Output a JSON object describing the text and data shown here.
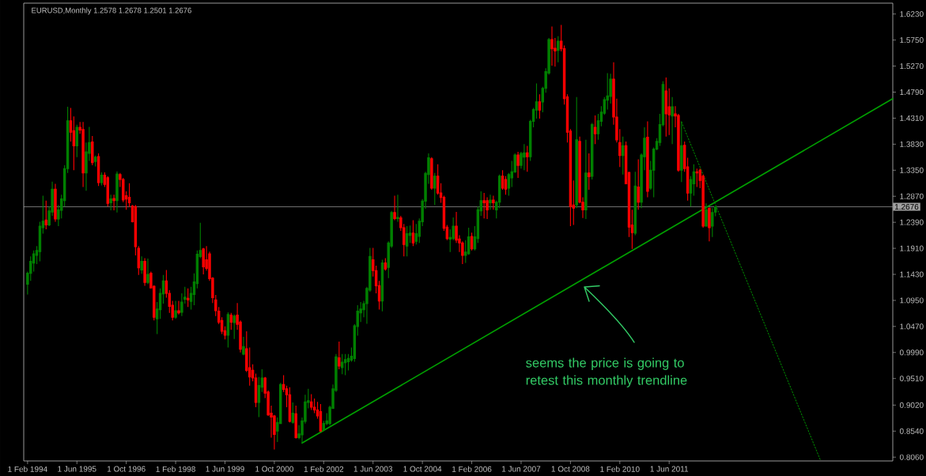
{
  "chart_data": {
    "type": "candlestick",
    "title": "EURUSD,Monthly 1.2578 1.2678 1.2501 1.2676",
    "annotations": [
      "seems the price is going to retest this monthly trendline"
    ],
    "colors": [
      "#008000",
      "#008000",
      "#008000",
      "#008000",
      "#008000",
      "#008000",
      "#ff0000",
      "#008000",
      "#008000",
      "#ff0000",
      "#008000",
      "#008000",
      "#008000",
      "#008000",
      "#ff0000",
      "#ff0000",
      "#008000",
      "#ff0000",
      "#ff0000",
      "#008000",
      "#008000",
      "#ff0000",
      "#008000",
      "#ff0000",
      "#008000",
      "#ff0000",
      "#ff0000",
      "#008000",
      "#ff0000",
      "#008000",
      "#ff0000",
      "#ff0000",
      "#ff0000",
      "#ff0000",
      "#ff0000",
      "#ff0000",
      "#ff0000",
      "#008000",
      "#ff0000",
      "#008000",
      "#ff0000",
      "#ff0000",
      "#008000",
      "#008000",
      "#008000",
      "#ff0000",
      "#ff0000",
      "#ff0000",
      "#008000",
      "#ff0000",
      "#008000",
      "#008000",
      "#ff0000",
      "#008000",
      "#008000",
      "#008000",
      "#008000",
      "#ff0000",
      "#ff0000",
      "#ff0000",
      "#ff0000",
      "#ff0000",
      "#ff0000",
      "#ff0000",
      "#ff0000",
      "#008000",
      "#ff0000",
      "#008000",
      "#ff0000",
      "#ff0000",
      "#008000",
      "#ff0000",
      "#ff0000",
      "#ff0000",
      "#ff0000",
      "#008000",
      "#008000",
      "#ff0000",
      "#ff0000",
      "#ff0000",
      "#ff0000",
      "#008000",
      "#008000",
      "#ff0000",
      "#ff0000",
      "#ff0000",
      "#008000",
      "#ff0000",
      "#008000",
      "#008000",
      "#008000",
      "#008000",
      "#ff0000",
      "#ff0000",
      "#ff0000",
      "#ff0000",
      "#008000",
      "#008000",
      "#008000",
      "#008000",
      "#008000",
      "#ff0000",
      "#008000",
      "#008000",
      "#008000",
      "#008000",
      "#008000",
      "#008000",
      "#008000",
      "#008000",
      "#008000",
      "#008000",
      "#ff0000",
      "#ff0000",
      "#ff0000",
      "#008000",
      "#ff0000",
      "#008000",
      "#008000",
      "#ff0000",
      "#008000",
      "#ff0000",
      "#ff0000",
      "#008000",
      "#008000",
      "#ff0000",
      "#008000",
      "#008000",
      "#008000",
      "#008000",
      "#008000",
      "#ff0000",
      "#008000",
      "#ff0000",
      "#ff0000",
      "#ff0000",
      "#ff0000",
      "#008000",
      "#008000",
      "#ff0000",
      "#ff0000",
      "#ff0000",
      "#008000",
      "#008000",
      "#ff0000",
      "#008000",
      "#008000",
      "#008000",
      "#ff0000",
      "#ff0000",
      "#008000",
      "#ff0000",
      "#008000",
      "#008000",
      "#ff0000",
      "#ff0000",
      "#008000",
      "#008000",
      "#008000",
      "#ff0000",
      "#008000",
      "#008000",
      "#ff0000",
      "#008000",
      "#008000",
      "#008000",
      "#ff0000",
      "#008000",
      "#008000",
      "#008000",
      "#ff0000",
      "#ff0000",
      "#008000",
      "#ff0000",
      "#ff0000",
      "#ff0000",
      "#ff0000",
      "#ff0000",
      "#008000",
      "#ff0000",
      "#ff0000",
      "#008000",
      "#ff0000",
      "#008000",
      "#ff0000",
      "#008000",
      "#008000",
      "#008000",
      "#008000",
      "#008000",
      "#ff0000",
      "#ff0000",
      "#ff0000",
      "#008000",
      "#ff0000",
      "#ff0000",
      "#ff0000",
      "#008000",
      "#ff0000",
      "#008000",
      "#008000",
      "#ff0000",
      "#008000",
      "#008000",
      "#008000",
      "#008000",
      "#008000",
      "#ff0000",
      "#ff0000",
      "#008000",
      "#ff0000",
      "#ff0000",
      "#008000",
      "#ff0000",
      "#ff0000",
      "#008000",
      "#008000",
      "#ff0000",
      "#ff0000",
      "#ff0000",
      "#008000",
      "#ff0000",
      "#008000",
      "#008000"
    ],
    "xlim": [
      "1993-12-24",
      "2017-06-16"
    ],
    "ylim": [
      0.799,
      1.643
    ],
    "xticks": [
      {
        "value": "1994-02-01",
        "label": "1 Feb 1994"
      },
      {
        "value": "1995-06-01",
        "label": "1 Jun 1995"
      },
      {
        "value": "1996-10-01",
        "label": "1 Oct 1996"
      },
      {
        "value": "1998-02-01",
        "label": "1 Feb 1998"
      },
      {
        "value": "1999-06-01",
        "label": "1 Jun 1999"
      },
      {
        "value": "2000-10-01",
        "label": "1 Oct 2000"
      },
      {
        "value": "2002-02-01",
        "label": "1 Feb 2002"
      },
      {
        "value": "2003-06-01",
        "label": "1 Jun 2003"
      },
      {
        "value": "2004-10-01",
        "label": "1 Oct 2004"
      },
      {
        "value": "2006-02-01",
        "label": "1 Feb 2006"
      },
      {
        "value": "2007-06-01",
        "label": "1 Jun 2007"
      },
      {
        "value": "2008-10-01",
        "label": "1 Oct 2008"
      },
      {
        "value": "2010-02-01",
        "label": "1 Feb 2010"
      },
      {
        "value": "2011-06-01",
        "label": "1 Jun 2011"
      }
    ],
    "yticks": [
      {
        "value": 0.806,
        "label": "0.8060"
      },
      {
        "value": 0.854,
        "label": "0.8540"
      },
      {
        "value": 0.902,
        "label": "0.9020"
      },
      {
        "value": 0.951,
        "label": "0.9510"
      },
      {
        "value": 0.999,
        "label": "0.9990"
      },
      {
        "value": 1.047,
        "label": "1.0470"
      },
      {
        "value": 1.095,
        "label": "1.0950"
      },
      {
        "value": 1.143,
        "label": "1.1430"
      },
      {
        "value": 1.191,
        "label": "1.1910"
      },
      {
        "value": 1.239,
        "label": "1.2390"
      },
      {
        "value": 1.287,
        "label": "1.2870"
      },
      {
        "value": 1.335,
        "label": "1.3350"
      },
      {
        "value": 1.383,
        "label": "1.3830"
      },
      {
        "value": 1.431,
        "label": "1.4310"
      },
      {
        "value": 1.479,
        "label": "1.4790"
      },
      {
        "value": 1.527,
        "label": "1.5270"
      },
      {
        "value": 1.575,
        "label": "1.5750"
      },
      {
        "value": 1.623,
        "label": "1.6230"
      }
    ],
    "ref_lines": [
      {
        "axis": "y",
        "value": 1.2676,
        "label": "1.2676",
        "color": "#a0a0a0"
      }
    ],
    "series": [
      {
        "type": "line",
        "color": "#00a000",
        "line_style": "solid",
        "x": [
          "2001-07-01",
          "2017-06-16"
        ],
        "values": [
          0.832,
          1.467
        ]
      },
      {
        "type": "line",
        "color": "#00a000",
        "line_style": "dotted",
        "x": [
          "2011-10-01",
          "2015-07-01"
        ],
        "values": [
          1.424,
          0.801
        ]
      }
    ],
    "x": [
      "1994-02",
      "1994-03",
      "1994-04",
      "1994-05",
      "1994-06",
      "1994-07",
      "1994-08",
      "1994-09",
      "1994-10",
      "1994-11",
      "1994-12",
      "1995-01",
      "1995-02",
      "1995-03",
      "1995-04",
      "1995-05",
      "1995-06",
      "1995-07",
      "1995-08",
      "1995-09",
      "1995-10",
      "1995-11",
      "1995-12",
      "1996-01",
      "1996-02",
      "1996-03",
      "1996-04",
      "1996-05",
      "1996-06",
      "1996-07",
      "1996-08",
      "1996-09",
      "1996-10",
      "1996-11",
      "1996-12",
      "1997-01",
      "1997-02",
      "1997-03",
      "1997-04",
      "1997-05",
      "1997-06",
      "1997-07",
      "1997-08",
      "1997-09",
      "1997-10",
      "1997-11",
      "1997-12",
      "1998-01",
      "1998-02",
      "1998-03",
      "1998-04",
      "1998-05",
      "1998-06",
      "1998-07",
      "1998-08",
      "1998-09",
      "1998-10",
      "1998-11",
      "1998-12",
      "1999-01",
      "1999-02",
      "1999-03",
      "1999-04",
      "1999-05",
      "1999-06",
      "1999-07",
      "1999-08",
      "1999-09",
      "1999-10",
      "1999-11",
      "1999-12",
      "2000-01",
      "2000-02",
      "2000-03",
      "2000-04",
      "2000-05",
      "2000-06",
      "2000-07",
      "2000-08",
      "2000-09",
      "2000-10",
      "2000-11",
      "2000-12",
      "2001-01",
      "2001-02",
      "2001-03",
      "2001-04",
      "2001-05",
      "2001-06",
      "2001-07",
      "2001-08",
      "2001-09",
      "2001-10",
      "2001-11",
      "2001-12",
      "2002-01",
      "2002-02",
      "2002-03",
      "2002-04",
      "2002-05",
      "2002-06",
      "2002-07",
      "2002-08",
      "2002-09",
      "2002-10",
      "2002-11",
      "2002-12",
      "2003-01",
      "2003-02",
      "2003-03",
      "2003-04",
      "2003-05",
      "2003-06",
      "2003-07",
      "2003-08",
      "2003-09",
      "2003-10",
      "2003-11",
      "2003-12",
      "2004-01",
      "2004-02",
      "2004-03",
      "2004-04",
      "2004-05",
      "2004-06",
      "2004-07",
      "2004-08",
      "2004-09",
      "2004-10",
      "2004-11",
      "2004-12",
      "2005-01",
      "2005-02",
      "2005-03",
      "2005-04",
      "2005-05",
      "2005-06",
      "2005-07",
      "2005-08",
      "2005-09",
      "2005-10",
      "2005-11",
      "2005-12",
      "2006-01",
      "2006-02",
      "2006-03",
      "2006-04",
      "2006-05",
      "2006-06",
      "2006-07",
      "2006-08",
      "2006-09",
      "2006-10",
      "2006-11",
      "2006-12",
      "2007-01",
      "2007-02",
      "2007-03",
      "2007-04",
      "2007-05",
      "2007-06",
      "2007-07",
      "2007-08",
      "2007-09",
      "2007-10",
      "2007-11",
      "2007-12",
      "2008-01",
      "2008-02",
      "2008-03",
      "2008-04",
      "2008-05",
      "2008-06",
      "2008-07",
      "2008-08",
      "2008-09",
      "2008-10",
      "2008-11",
      "2008-12",
      "2009-01",
      "2009-02",
      "2009-03",
      "2009-04",
      "2009-05",
      "2009-06",
      "2009-07",
      "2009-08",
      "2009-09",
      "2009-10",
      "2009-11",
      "2009-12",
      "2010-01",
      "2010-02",
      "2010-03",
      "2010-04",
      "2010-05",
      "2010-06",
      "2010-07",
      "2010-08",
      "2010-09",
      "2010-10",
      "2010-11",
      "2010-12",
      "2011-01",
      "2011-02",
      "2011-03",
      "2011-04",
      "2011-05",
      "2011-06",
      "2011-07",
      "2011-08",
      "2011-09",
      "2011-10",
      "2011-11",
      "2011-12",
      "2012-01",
      "2012-02",
      "2012-03",
      "2012-04",
      "2012-05",
      "2012-06",
      "2012-07",
      "2012-08",
      "2012-09"
    ],
    "ohlc": [
      [
        1.125,
        1.148,
        1.106,
        1.145
      ],
      [
        1.145,
        1.176,
        1.131,
        1.167
      ],
      [
        1.164,
        1.187,
        1.148,
        1.181
      ],
      [
        1.178,
        1.195,
        1.162,
        1.187
      ],
      [
        1.185,
        1.24,
        1.167,
        1.232
      ],
      [
        1.229,
        1.288,
        1.218,
        1.241
      ],
      [
        1.243,
        1.279,
        1.226,
        1.234
      ],
      [
        1.234,
        1.268,
        1.232,
        1.26
      ],
      [
        1.258,
        1.314,
        1.251,
        1.3
      ],
      [
        1.3,
        1.31,
        1.24,
        1.245
      ],
      [
        1.245,
        1.271,
        1.232,
        1.262
      ],
      [
        1.261,
        1.29,
        1.246,
        1.282
      ],
      [
        1.279,
        1.344,
        1.268,
        1.338
      ],
      [
        1.338,
        1.452,
        1.33,
        1.426
      ],
      [
        1.426,
        1.45,
        1.388,
        1.405
      ],
      [
        1.408,
        1.434,
        1.335,
        1.38
      ],
      [
        1.38,
        1.419,
        1.359,
        1.414
      ],
      [
        1.414,
        1.424,
        1.402,
        1.409
      ],
      [
        1.41,
        1.424,
        1.304,
        1.33
      ],
      [
        1.33,
        1.386,
        1.297,
        1.369
      ],
      [
        1.366,
        1.415,
        1.352,
        1.386
      ],
      [
        1.387,
        1.398,
        1.344,
        1.349
      ],
      [
        1.351,
        1.362,
        1.342,
        1.359
      ],
      [
        1.36,
        1.366,
        1.306,
        1.312
      ],
      [
        1.312,
        1.331,
        1.307,
        1.326
      ],
      [
        1.326,
        1.331,
        1.304,
        1.309
      ],
      [
        1.321,
        1.324,
        1.268,
        1.274
      ],
      [
        1.275,
        1.29,
        1.261,
        1.282
      ],
      [
        1.283,
        1.29,
        1.261,
        1.279
      ],
      [
        1.279,
        1.333,
        1.257,
        1.328
      ],
      [
        1.327,
        1.33,
        1.304,
        1.318
      ],
      [
        1.318,
        1.321,
        1.276,
        1.28
      ],
      [
        1.288,
        1.296,
        1.262,
        1.282
      ],
      [
        1.285,
        1.311,
        1.267,
        1.275
      ],
      [
        1.269,
        1.271,
        1.239,
        1.24
      ],
      [
        1.268,
        1.271,
        1.178,
        1.194
      ],
      [
        1.191,
        1.195,
        1.142,
        1.155
      ],
      [
        1.151,
        1.176,
        1.144,
        1.167
      ],
      [
        1.167,
        1.173,
        1.122,
        1.128
      ],
      [
        1.128,
        1.172,
        1.125,
        1.143
      ],
      [
        1.145,
        1.148,
        1.117,
        1.118
      ],
      [
        1.121,
        1.123,
        1.058,
        1.064
      ],
      [
        1.061,
        1.092,
        1.033,
        1.079
      ],
      [
        1.078,
        1.117,
        1.061,
        1.108
      ],
      [
        1.107,
        1.142,
        1.089,
        1.131
      ],
      [
        1.131,
        1.151,
        1.1,
        1.108
      ],
      [
        1.108,
        1.114,
        1.072,
        1.084
      ],
      [
        1.086,
        1.094,
        1.058,
        1.064
      ],
      [
        1.064,
        1.094,
        1.061,
        1.076
      ],
      [
        1.076,
        1.094,
        1.069,
        1.072
      ],
      [
        1.073,
        1.108,
        1.066,
        1.092
      ],
      [
        1.097,
        1.12,
        1.089,
        1.101
      ],
      [
        1.099,
        1.117,
        1.083,
        1.096
      ],
      [
        1.093,
        1.12,
        1.078,
        1.108
      ],
      [
        1.106,
        1.145,
        1.086,
        1.129
      ],
      [
        1.126,
        1.187,
        1.117,
        1.18
      ],
      [
        1.176,
        1.238,
        1.173,
        1.187
      ],
      [
        1.19,
        1.192,
        1.143,
        1.157
      ],
      [
        1.17,
        1.195,
        1.15,
        1.154
      ],
      [
        1.181,
        1.185,
        1.131,
        1.135
      ],
      [
        1.136,
        1.138,
        1.09,
        1.1
      ],
      [
        1.096,
        1.105,
        1.066,
        1.076
      ],
      [
        1.075,
        1.083,
        1.051,
        1.055
      ],
      [
        1.058,
        1.064,
        1.033,
        1.038
      ],
      [
        1.039,
        1.047,
        1.023,
        1.031
      ],
      [
        1.031,
        1.073,
        1.008,
        1.069
      ],
      [
        1.068,
        1.072,
        1.041,
        1.055
      ],
      [
        1.054,
        1.069,
        1.024,
        1.066
      ],
      [
        1.068,
        1.09,
        1.041,
        1.051
      ],
      [
        1.055,
        1.058,
        0.999,
        1.005
      ],
      [
        0.996,
        1.028,
        0.994,
        1.01
      ],
      [
        1.006,
        1.038,
        0.963,
        0.966
      ],
      [
        0.971,
        1.008,
        0.938,
        0.954
      ],
      [
        0.966,
        0.977,
        0.946,
        0.952
      ],
      [
        0.952,
        0.96,
        0.898,
        0.907
      ],
      [
        0.907,
        0.954,
        0.88,
        0.938
      ],
      [
        0.935,
        0.968,
        0.926,
        0.952
      ],
      [
        0.952,
        0.954,
        0.915,
        0.924
      ],
      [
        0.926,
        0.929,
        0.882,
        0.884
      ],
      [
        0.887,
        0.901,
        0.842,
        0.88
      ],
      [
        0.882,
        0.884,
        0.82,
        0.848
      ],
      [
        0.854,
        0.879,
        0.834,
        0.87
      ],
      [
        0.868,
        0.943,
        0.867,
        0.94
      ],
      [
        0.94,
        0.957,
        0.926,
        0.931
      ],
      [
        0.932,
        0.938,
        0.898,
        0.921
      ],
      [
        0.921,
        0.935,
        0.87,
        0.872
      ],
      [
        0.87,
        0.907,
        0.868,
        0.887
      ],
      [
        0.886,
        0.901,
        0.84,
        0.842
      ],
      [
        0.842,
        0.865,
        0.839,
        0.849
      ],
      [
        0.847,
        0.879,
        0.833,
        0.873
      ],
      [
        0.872,
        0.921,
        0.868,
        0.908
      ],
      [
        0.907,
        0.932,
        0.896,
        0.91
      ],
      [
        0.908,
        0.922,
        0.893,
        0.898
      ],
      [
        0.898,
        0.914,
        0.887,
        0.893
      ],
      [
        0.893,
        0.908,
        0.877,
        0.882
      ],
      [
        0.89,
        0.904,
        0.853,
        0.854
      ],
      [
        0.856,
        0.873,
        0.854,
        0.868
      ],
      [
        0.868,
        0.887,
        0.865,
        0.873
      ],
      [
        0.868,
        0.901,
        0.865,
        0.898
      ],
      [
        0.896,
        0.94,
        0.895,
        0.932
      ],
      [
        0.929,
        0.996,
        0.926,
        0.991
      ],
      [
        0.989,
        1.019,
        0.968,
        0.974
      ],
      [
        0.971,
        0.996,
        0.959,
        0.981
      ],
      [
        0.98,
        0.996,
        0.957,
        0.986
      ],
      [
        0.982,
        0.996,
        0.966,
        0.988
      ],
      [
        0.985,
        1.008,
        0.982,
        0.992
      ],
      [
        0.988,
        1.051,
        0.982,
        1.048
      ],
      [
        1.047,
        1.086,
        1.03,
        1.075
      ],
      [
        1.072,
        1.092,
        1.055,
        1.079
      ],
      [
        1.078,
        1.094,
        1.064,
        1.089
      ],
      [
        1.089,
        1.12,
        1.052,
        1.117
      ],
      [
        1.114,
        1.192,
        1.111,
        1.176
      ],
      [
        1.17,
        1.192,
        1.139,
        1.15
      ],
      [
        1.15,
        1.159,
        1.108,
        1.122
      ],
      [
        1.122,
        1.131,
        1.078,
        1.094
      ],
      [
        1.094,
        1.17,
        1.075,
        1.164
      ],
      [
        1.164,
        1.173,
        1.15,
        1.153
      ],
      [
        1.156,
        1.204,
        1.136,
        1.201
      ],
      [
        1.195,
        1.26,
        1.192,
        1.257
      ],
      [
        1.257,
        1.288,
        1.243,
        1.246
      ],
      [
        1.246,
        1.29,
        1.24,
        1.248
      ],
      [
        1.247,
        1.251,
        1.223,
        1.229
      ],
      [
        1.229,
        1.236,
        1.176,
        1.198
      ],
      [
        1.195,
        1.232,
        1.176,
        1.218
      ],
      [
        1.215,
        1.233,
        1.201,
        1.219
      ],
      [
        1.219,
        1.243,
        1.195,
        1.201
      ],
      [
        1.204,
        1.236,
        1.198,
        1.218
      ],
      [
        1.213,
        1.246,
        1.201,
        1.241
      ],
      [
        1.24,
        1.282,
        1.232,
        1.278
      ],
      [
        1.278,
        1.332,
        1.264,
        1.329
      ],
      [
        1.327,
        1.366,
        1.31,
        1.358
      ],
      [
        1.356,
        1.359,
        1.299,
        1.302
      ],
      [
        1.302,
        1.33,
        1.271,
        1.324
      ],
      [
        1.324,
        1.346,
        1.29,
        1.293
      ],
      [
        1.293,
        1.311,
        1.275,
        1.285
      ],
      [
        1.285,
        1.288,
        1.223,
        1.228
      ],
      [
        1.23,
        1.234,
        1.206,
        1.209
      ],
      [
        1.208,
        1.226,
        1.184,
        1.211
      ],
      [
        1.209,
        1.248,
        1.206,
        1.232
      ],
      [
        1.232,
        1.258,
        1.201,
        1.206
      ],
      [
        1.208,
        1.215,
        1.184,
        1.201
      ],
      [
        1.201,
        1.204,
        1.162,
        1.178
      ],
      [
        1.178,
        1.206,
        1.164,
        1.184
      ],
      [
        1.181,
        1.229,
        1.179,
        1.212
      ],
      [
        1.213,
        1.22,
        1.187,
        1.19
      ],
      [
        1.19,
        1.232,
        1.187,
        1.212
      ],
      [
        1.209,
        1.268,
        1.201,
        1.262
      ],
      [
        1.26,
        1.296,
        1.251,
        1.279
      ],
      [
        1.279,
        1.293,
        1.246,
        1.275
      ],
      [
        1.279,
        1.285,
        1.245,
        1.262
      ],
      [
        1.275,
        1.29,
        1.262,
        1.28
      ],
      [
        1.28,
        1.288,
        1.262,
        1.275
      ],
      [
        1.262,
        1.279,
        1.246,
        1.276
      ],
      [
        1.276,
        1.327,
        1.265,
        1.324
      ],
      [
        1.324,
        1.335,
        1.299,
        1.302
      ],
      [
        1.318,
        1.324,
        1.29,
        1.3
      ],
      [
        1.302,
        1.33,
        1.288,
        1.327
      ],
      [
        1.321,
        1.352,
        1.304,
        1.332
      ],
      [
        1.332,
        1.366,
        1.33,
        1.363
      ],
      [
        1.363,
        1.369,
        1.321,
        1.344
      ],
      [
        1.344,
        1.369,
        1.338,
        1.366
      ],
      [
        1.359,
        1.383,
        1.335,
        1.367
      ],
      [
        1.367,
        1.38,
        1.332,
        1.36
      ],
      [
        1.36,
        1.428,
        1.352,
        1.425
      ],
      [
        1.425,
        1.45,
        1.414,
        1.447
      ],
      [
        1.446,
        1.495,
        1.43,
        1.461
      ],
      [
        1.461,
        1.475,
        1.43,
        1.446
      ],
      [
        1.461,
        1.489,
        1.442,
        1.486
      ],
      [
        1.486,
        1.523,
        1.478,
        1.517
      ],
      [
        1.514,
        1.579,
        1.511,
        1.576
      ],
      [
        1.576,
        1.6,
        1.528,
        1.559
      ],
      [
        1.56,
        1.579,
        1.526,
        1.555
      ],
      [
        1.556,
        1.582,
        1.534,
        1.573
      ],
      [
        1.573,
        1.603,
        1.554,
        1.559
      ],
      [
        1.559,
        1.565,
        1.456,
        1.467
      ],
      [
        1.47,
        1.475,
        1.386,
        1.405
      ],
      [
        1.407,
        1.411,
        1.232,
        1.268
      ],
      [
        1.271,
        1.316,
        1.234,
        1.265
      ],
      [
        1.271,
        1.47,
        1.265,
        1.391
      ],
      [
        1.388,
        1.397,
        1.274,
        1.276
      ],
      [
        1.276,
        1.285,
        1.247,
        1.262
      ],
      [
        1.262,
        1.391,
        1.245,
        1.33
      ],
      [
        1.33,
        1.366,
        1.299,
        1.323
      ],
      [
        1.324,
        1.422,
        1.318,
        1.419
      ],
      [
        1.414,
        1.436,
        1.383,
        1.402
      ],
      [
        1.402,
        1.439,
        1.391,
        1.426
      ],
      [
        1.425,
        1.453,
        1.416,
        1.442
      ],
      [
        1.44,
        1.47,
        1.437,
        1.465
      ],
      [
        1.464,
        1.514,
        1.447,
        1.472
      ],
      [
        1.471,
        1.513,
        1.458,
        1.503
      ],
      [
        1.503,
        1.534,
        1.419,
        1.433
      ],
      [
        1.433,
        1.467,
        1.386,
        1.391
      ],
      [
        1.386,
        1.411,
        1.341,
        1.362
      ],
      [
        1.362,
        1.397,
        1.327,
        1.38
      ],
      [
        1.38,
        1.388,
        1.309,
        1.31
      ],
      [
        1.331,
        1.332,
        1.212,
        1.23
      ],
      [
        1.234,
        1.262,
        1.19,
        1.22
      ],
      [
        1.219,
        1.332,
        1.215,
        1.306
      ],
      [
        1.304,
        1.355,
        1.262,
        1.276
      ],
      [
        1.276,
        1.366,
        1.265,
        1.363
      ],
      [
        1.36,
        1.414,
        1.335,
        1.394
      ],
      [
        1.396,
        1.425,
        1.285,
        1.296
      ],
      [
        1.302,
        1.352,
        1.299,
        1.335
      ],
      [
        1.335,
        1.377,
        1.285,
        1.374
      ],
      [
        1.374,
        1.394,
        1.372,
        1.388
      ],
      [
        1.386,
        1.439,
        1.38,
        1.419
      ],
      [
        1.419,
        1.499,
        1.416,
        1.493
      ],
      [
        1.481,
        1.506,
        1.397,
        1.439
      ],
      [
        1.452,
        1.486,
        1.4,
        1.437
      ],
      [
        1.435,
        1.47,
        1.383,
        1.452
      ],
      [
        1.439,
        1.453,
        1.414,
        1.435
      ],
      [
        1.436,
        1.439,
        1.332,
        1.335
      ],
      [
        1.335,
        1.425,
        1.313,
        1.38
      ],
      [
        1.381,
        1.388,
        1.332,
        1.338
      ],
      [
        1.341,
        1.358,
        1.279,
        1.293
      ],
      [
        1.293,
        1.324,
        1.268,
        1.318
      ],
      [
        1.31,
        1.346,
        1.288,
        1.332
      ],
      [
        1.332,
        1.338,
        1.304,
        1.33
      ],
      [
        1.335,
        1.338,
        1.302,
        1.316
      ],
      [
        1.324,
        1.327,
        1.229,
        1.232
      ],
      [
        1.232,
        1.274,
        1.231,
        1.262
      ],
      [
        1.265,
        1.266,
        1.204,
        1.229
      ],
      [
        1.232,
        1.265,
        1.212,
        1.257
      ],
      [
        1.2578,
        1.2678,
        1.2501,
        1.2676
      ]
    ]
  }
}
